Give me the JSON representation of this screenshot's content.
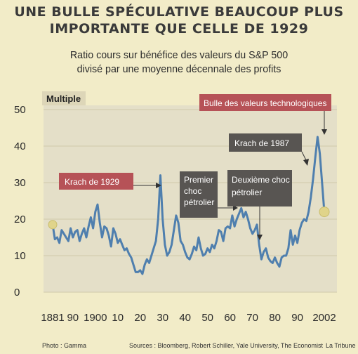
{
  "title_line1": "UNE BULLE SPÉCULATIVE BEAUCOUP PLUS",
  "title_line2": "IMPORTANTE QUE CELLE DE 1929",
  "subtitle_line1": "Ratio cours sur bénéfice des valeurs du S&P 500",
  "subtitle_line2": "divisé par une moyenne décennale des profits",
  "footer": {
    "photo": "Photo : Gamma",
    "sources": "Sources : Bloomberg, Robert Schiller, Yale University, The Economist",
    "publisher": "La Tribune"
  },
  "colors": {
    "line": "#4f7fae",
    "background": "#f2ecc8",
    "plot_background": "#e4dfc8",
    "label_red": "#b65257",
    "label_dark": "#585552"
  },
  "chart_data": {
    "type": "line",
    "ylabel": "Multiple",
    "ylim": [
      0,
      50
    ],
    "yticks": [
      0,
      10,
      20,
      30,
      40,
      50
    ],
    "xticks": [
      "1881",
      "90",
      "1900",
      "10",
      "20",
      "30",
      "40",
      "50",
      "60",
      "70",
      "80",
      "90",
      "2002"
    ],
    "xtick_years": [
      1881,
      1890,
      1900,
      1910,
      1920,
      1930,
      1940,
      1950,
      1960,
      1970,
      1980,
      1990,
      2002
    ],
    "series": [
      {
        "x": [
          1881,
          1882,
          1883,
          1884,
          1885,
          1886,
          1887,
          1888,
          1889,
          1890,
          1891,
          1892,
          1893,
          1894,
          1895,
          1896,
          1897,
          1898,
          1899,
          1900,
          1901,
          1902,
          1903,
          1904,
          1905,
          1906,
          1907,
          1908,
          1909,
          1910,
          1911,
          1912,
          1913,
          1914,
          1915,
          1916,
          1917,
          1918,
          1919,
          1920,
          1921,
          1922,
          1923,
          1924,
          1925,
          1926,
          1927,
          1928,
          1929,
          1930,
          1931,
          1932,
          1933,
          1934,
          1935,
          1936,
          1937,
          1938,
          1939,
          1940,
          1941,
          1942,
          1943,
          1944,
          1945,
          1946,
          1947,
          1948,
          1949,
          1950,
          1951,
          1952,
          1953,
          1954,
          1955,
          1956,
          1957,
          1958,
          1959,
          1960,
          1961,
          1962,
          1963,
          1964,
          1965,
          1966,
          1967,
          1968,
          1969,
          1970,
          1971,
          1972,
          1973,
          1974,
          1975,
          1976,
          1977,
          1978,
          1979,
          1980,
          1981,
          1982,
          1983,
          1984,
          1985,
          1986,
          1987,
          1988,
          1989,
          1990,
          1991,
          1992,
          1993,
          1994,
          1995,
          1996,
          1997,
          1998,
          1999,
          2000,
          2001,
          2002
        ],
        "y": [
          18.5,
          14.5,
          15,
          13.5,
          17,
          16,
          15,
          14,
          17.5,
          15,
          16.5,
          17,
          14,
          16,
          17.5,
          15,
          18,
          20.5,
          17.5,
          22,
          24,
          19,
          15,
          18,
          17.5,
          15.5,
          12.5,
          17.5,
          16,
          13.5,
          14.5,
          13,
          11.5,
          12,
          10.5,
          9.5,
          7.5,
          5.5,
          5.5,
          6,
          5,
          7.5,
          9,
          8,
          10,
          12,
          14,
          20,
          32,
          20,
          13,
          10,
          11,
          13,
          17,
          21,
          19,
          14,
          13,
          11,
          9.5,
          9,
          10.5,
          12.5,
          11.5,
          15,
          12,
          10,
          10.5,
          12,
          11,
          13,
          12,
          14,
          17,
          16.5,
          14,
          17.5,
          18,
          17.5,
          21,
          18,
          20,
          21.5,
          23,
          20.5,
          22,
          20,
          17.5,
          16,
          17,
          18.5,
          13,
          9,
          11,
          12,
          9.5,
          8.5,
          8,
          9.5,
          8,
          7,
          9.5,
          10,
          10,
          12,
          17,
          13,
          15.5,
          13.5,
          17,
          19,
          20,
          19.5,
          22,
          26,
          31,
          37,
          42.5,
          38,
          30,
          22
        ]
      }
    ]
  },
  "annotations": {
    "krach1929": "Krach de 1929",
    "choc1_l1": "Premier",
    "choc1_l2": "choc",
    "choc1_l3": "pétrolier",
    "choc2_l1": "Deuxième choc",
    "choc2_l2": "pétrolier",
    "krach1987": "Krach de 1987",
    "bulle": "Bulle des valeurs technologiques"
  }
}
